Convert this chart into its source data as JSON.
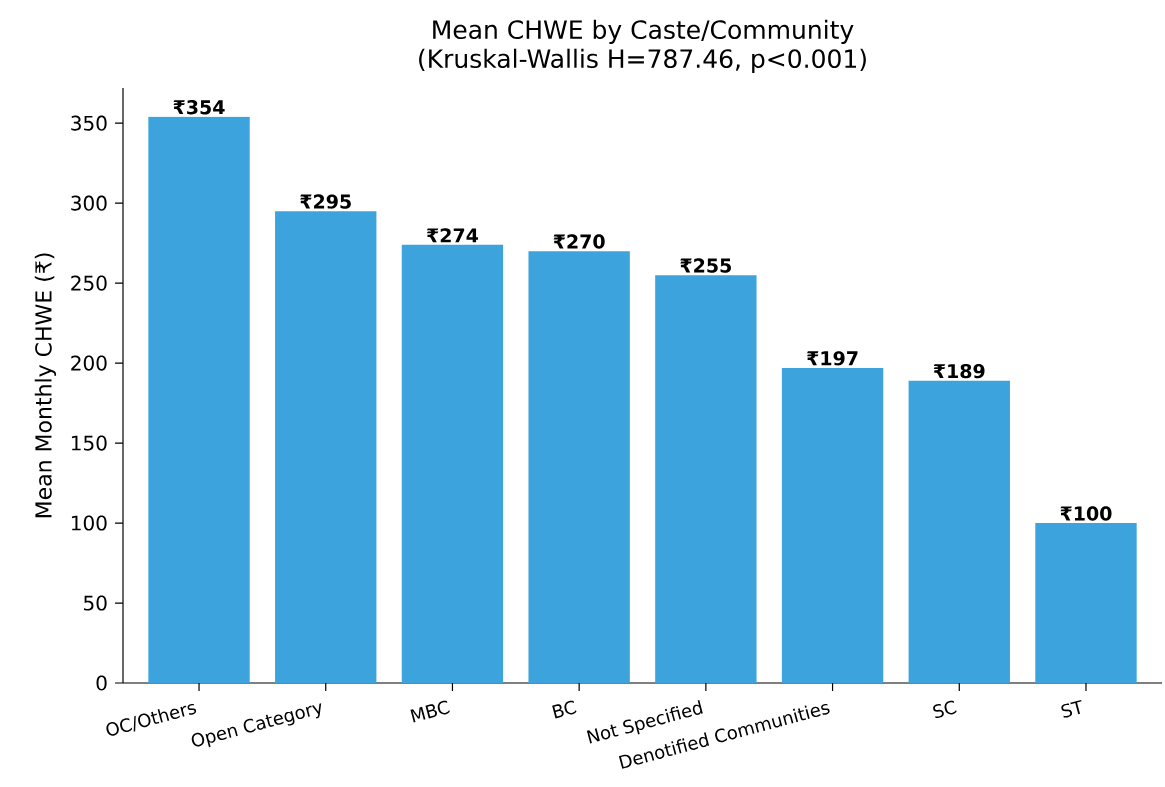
{
  "chart_data": {
    "type": "bar",
    "title": "Mean CHWE by Caste/Community",
    "subtitle": "(Kruskal-Wallis H=787.46, p<0.001)",
    "ylabel": "Mean Monthly CHWE (₹)",
    "categories": [
      "OC/Others",
      "Open Category",
      "MBC",
      "BC",
      "Not Specified",
      "Denotified Communities",
      "SC",
      "ST"
    ],
    "values": [
      354,
      295,
      274,
      270,
      255,
      197,
      189,
      100
    ],
    "value_labels": [
      "₹354",
      "₹295",
      "₹274",
      "₹270",
      "₹255",
      "₹197",
      "₹189",
      "₹100"
    ],
    "color": "#3ca3dc",
    "ylim": [
      0,
      372
    ],
    "yticks": [
      0,
      50,
      100,
      150,
      200,
      250,
      300,
      350
    ]
  }
}
